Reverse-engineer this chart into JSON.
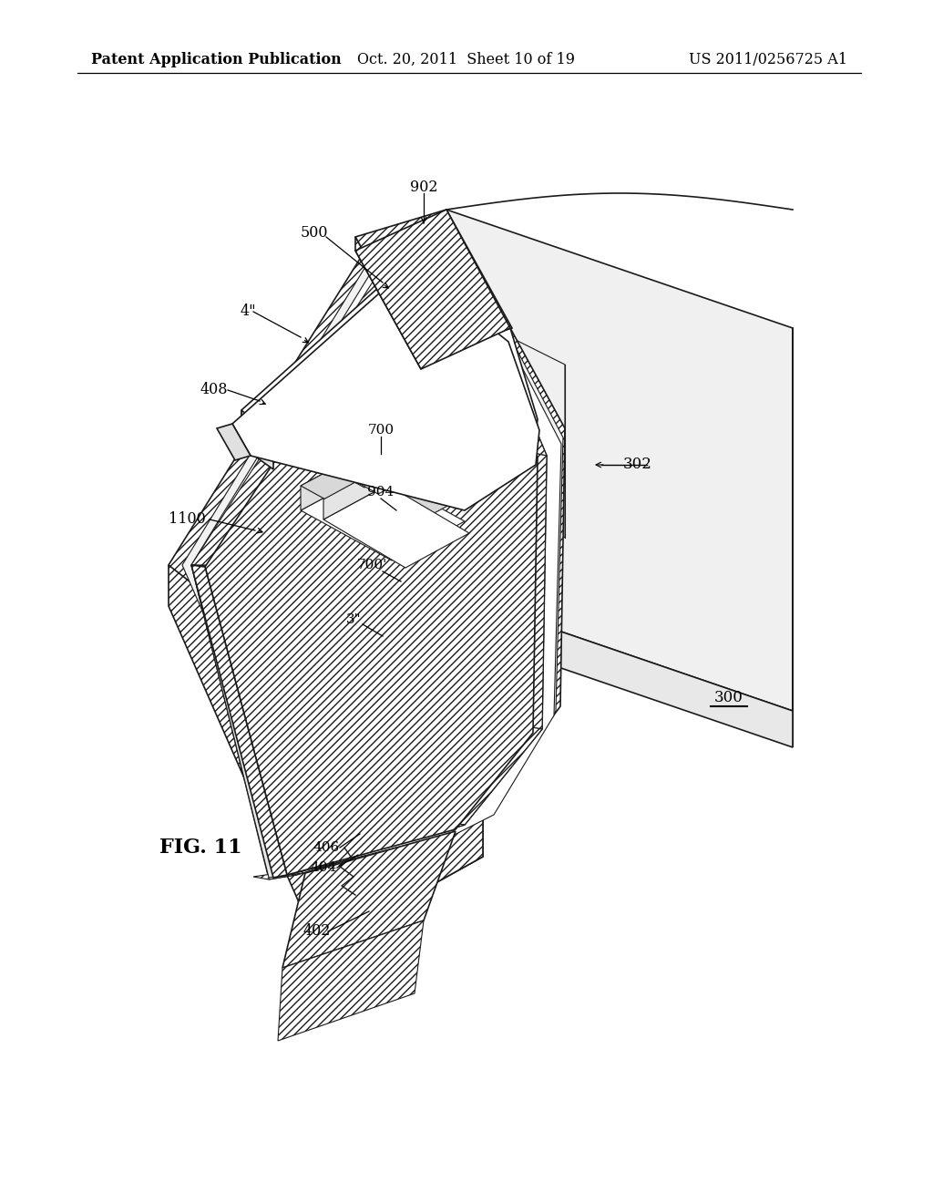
{
  "header_left": "Patent Application Publication",
  "header_center": "Oct. 20, 2011  Sheet 10 of 19",
  "header_right": "US 2011/0256725 A1",
  "figure_label": "FIG. 11",
  "bg": "#ffffff",
  "lc": "#1a1a1a"
}
